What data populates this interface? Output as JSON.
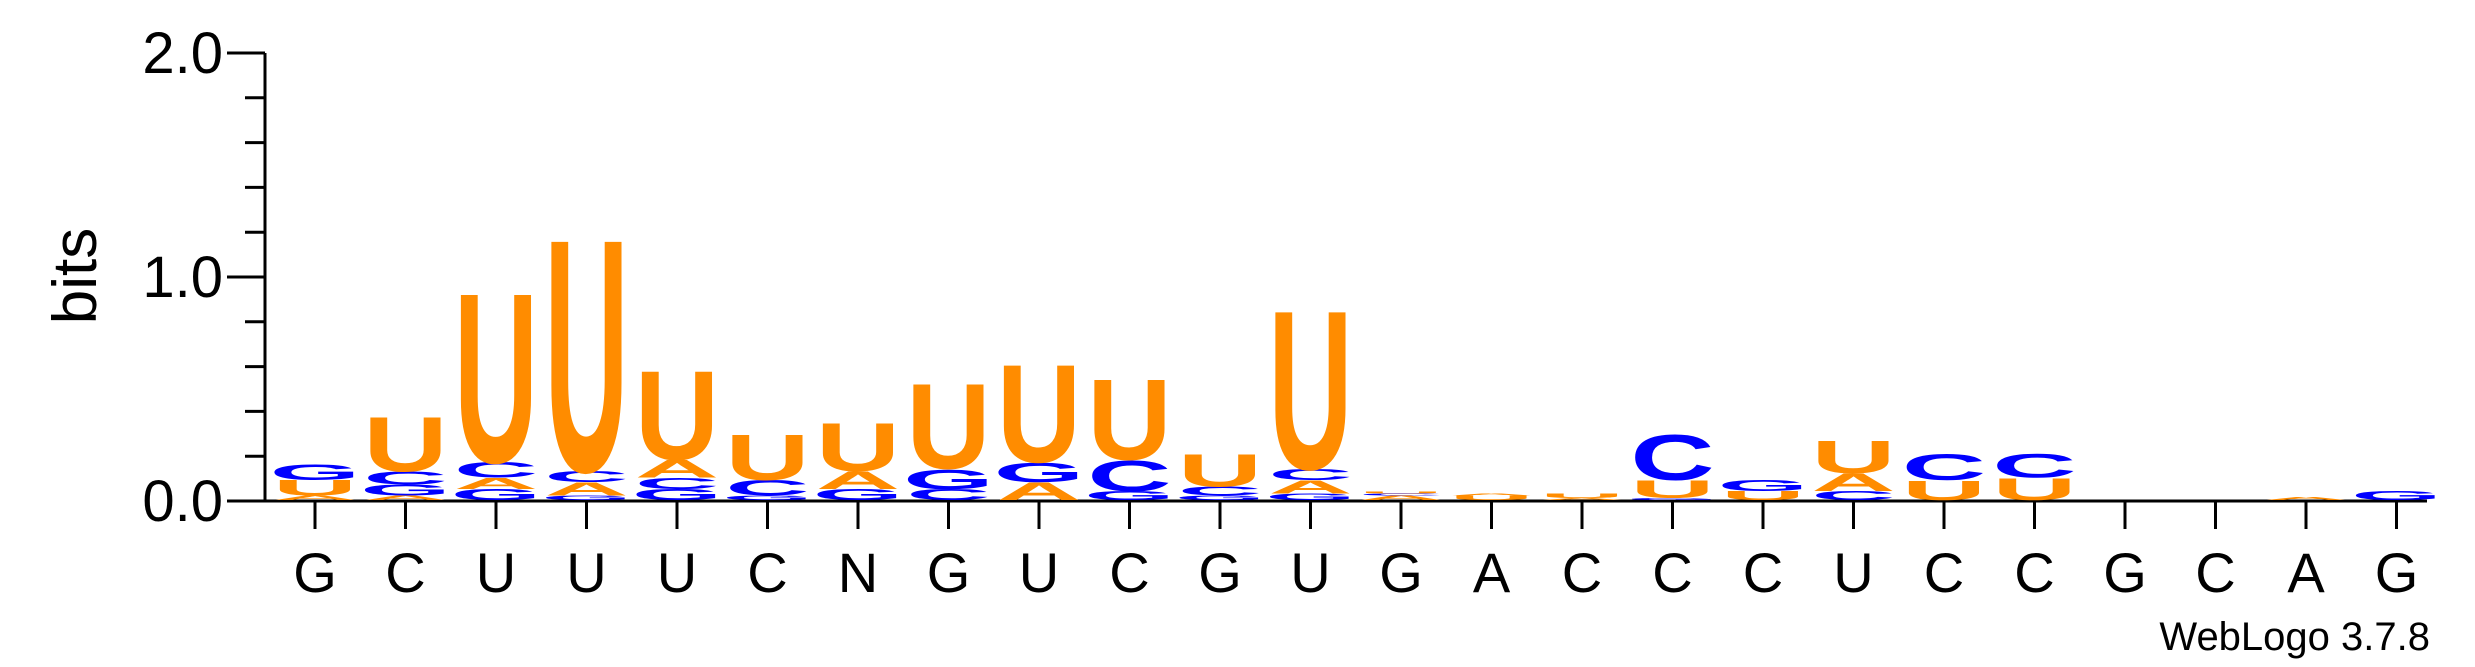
{
  "chart_data": {
    "type": "sequence-logo",
    "ylabel": "bits",
    "yticks": [
      "0.0",
      "1.0",
      "2.0"
    ],
    "ylim": [
      0,
      2
    ],
    "credit": "WebLogo 3.7.8",
    "colors": {
      "U": "#FF8C00",
      "A": "#FF8C00",
      "C": "#0000FF",
      "G": "#0000FF"
    },
    "positions": [
      "G",
      "C",
      "U",
      "U",
      "U",
      "C",
      "N",
      "G",
      "U",
      "C",
      "G",
      "U",
      "G",
      "A",
      "C",
      "C",
      "C",
      "U",
      "C",
      "C",
      "G",
      "C",
      "A",
      "G"
    ],
    "stacks": [
      [
        {
          "l": "A",
          "v": 0.02
        },
        {
          "l": "U",
          "v": 0.07
        },
        {
          "l": "G",
          "v": 0.07
        }
      ],
      [
        {
          "l": "A",
          "v": 0.02
        },
        {
          "l": "G",
          "v": 0.05
        },
        {
          "l": "C",
          "v": 0.06
        },
        {
          "l": "U",
          "v": 0.25
        }
      ],
      [
        {
          "l": "G",
          "v": 0.05
        },
        {
          "l": "A",
          "v": 0.05
        },
        {
          "l": "C",
          "v": 0.07
        },
        {
          "l": "U",
          "v": 0.78
        }
      ],
      [
        {
          "l": "G",
          "v": 0.02
        },
        {
          "l": "A",
          "v": 0.06
        },
        {
          "l": "C",
          "v": 0.05
        },
        {
          "l": "U",
          "v": 1.07
        }
      ],
      [
        {
          "l": "G",
          "v": 0.05
        },
        {
          "l": "C",
          "v": 0.05
        },
        {
          "l": "A",
          "v": 0.08
        },
        {
          "l": "U",
          "v": 0.41
        }
      ],
      [
        {
          "l": "G",
          "v": 0.02
        },
        {
          "l": "C",
          "v": 0.07
        },
        {
          "l": "U",
          "v": 0.21
        }
      ],
      [
        {
          "l": "G",
          "v": 0.05
        },
        {
          "l": "A",
          "v": 0.08
        },
        {
          "l": "U",
          "v": 0.22
        }
      ],
      [
        {
          "l": "C",
          "v": 0.05
        },
        {
          "l": "G",
          "v": 0.09
        },
        {
          "l": "U",
          "v": 0.39
        }
      ],
      [
        {
          "l": "A",
          "v": 0.08
        },
        {
          "l": "G",
          "v": 0.09
        },
        {
          "l": "U",
          "v": 0.45
        }
      ],
      [
        {
          "l": "G",
          "v": 0.04
        },
        {
          "l": "C",
          "v": 0.14
        },
        {
          "l": "U",
          "v": 0.37
        }
      ],
      [
        {
          "l": "G",
          "v": 0.02
        },
        {
          "l": "C",
          "v": 0.04
        },
        {
          "l": "U",
          "v": 0.15
        }
      ],
      [
        {
          "l": "G",
          "v": 0.03
        },
        {
          "l": "A",
          "v": 0.06
        },
        {
          "l": "C",
          "v": 0.05
        },
        {
          "l": "U",
          "v": 0.73
        }
      ],
      [
        {
          "l": "A",
          "v": 0.02
        },
        {
          "l": "C",
          "v": 0.01
        },
        {
          "l": "U",
          "v": 0.01
        }
      ],
      [
        {
          "l": "U",
          "v": 0.02
        },
        {
          "l": "A",
          "v": 0.01
        }
      ],
      [
        {
          "l": "A",
          "v": 0.01
        },
        {
          "l": "U",
          "v": 0.02
        }
      ],
      [
        {
          "l": "G",
          "v": 0.01
        },
        {
          "l": "U",
          "v": 0.08
        },
        {
          "l": "C",
          "v": 0.21
        }
      ],
      [
        {
          "l": "U",
          "v": 0.04
        },
        {
          "l": "G",
          "v": 0.05
        }
      ],
      [
        {
          "l": "C",
          "v": 0.04
        },
        {
          "l": "A",
          "v": 0.08
        },
        {
          "l": "U",
          "v": 0.15
        }
      ],
      [
        {
          "l": "U",
          "v": 0.09
        },
        {
          "l": "C",
          "v": 0.12
        }
      ],
      [
        {
          "l": "U",
          "v": 0.1
        },
        {
          "l": "C",
          "v": 0.11
        }
      ],
      [],
      [],
      [
        {
          "l": "A",
          "v": 0.015
        }
      ],
      [
        {
          "l": "G",
          "v": 0.04
        }
      ]
    ]
  }
}
